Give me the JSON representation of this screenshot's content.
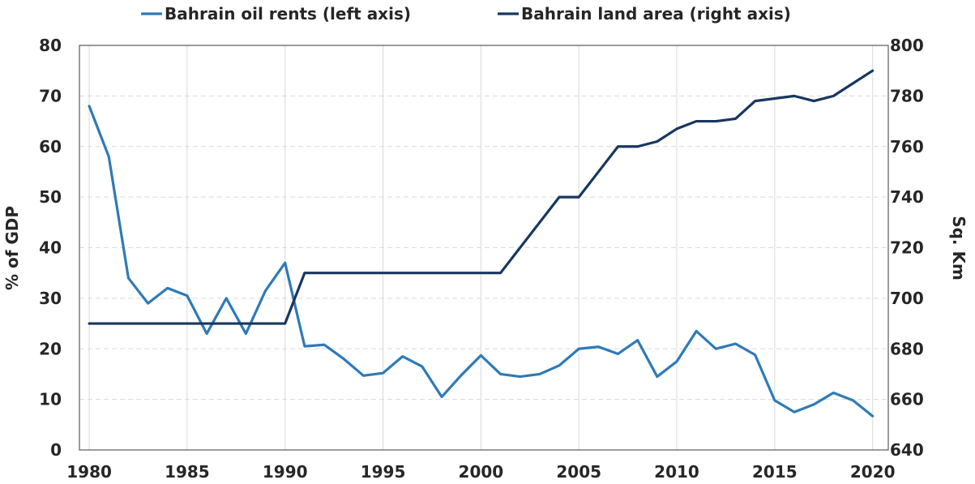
{
  "chart_data": {
    "type": "line",
    "title": "",
    "legend": {
      "placement": "top-center",
      "entries": [
        "Bahrain oil rents (left axis)",
        "Bahrain land area (right axis)"
      ]
    },
    "x": {
      "range": [
        1979.5,
        2020.8
      ],
      "ticks": [
        1980,
        1985,
        1990,
        1995,
        2000,
        2005,
        2010,
        2015,
        2020
      ],
      "tick_labels": [
        "1980",
        "1985",
        "1990",
        "1995",
        "2000",
        "2005",
        "2010",
        "2015",
        "2020"
      ]
    },
    "y_left": {
      "label": "% of GDP",
      "range": [
        0,
        80
      ],
      "ticks": [
        0,
        10,
        20,
        30,
        40,
        50,
        60,
        70,
        80
      ],
      "tick_labels": [
        "0",
        "10",
        "20",
        "30",
        "40",
        "50",
        "60",
        "70",
        "80"
      ]
    },
    "y_right": {
      "label": "Sq. Km",
      "range": [
        640,
        800
      ],
      "ticks": [
        640,
        660,
        680,
        700,
        720,
        740,
        760,
        780,
        800
      ],
      "tick_labels": [
        "640",
        "660",
        "680",
        "700",
        "720",
        "740",
        "760",
        "780",
        "800"
      ]
    },
    "grid": {
      "horizontal": true,
      "vertical": true
    },
    "series": [
      {
        "name": "Bahrain oil rents (left axis)",
        "axis": "left",
        "color": "#2e7ab8",
        "x": [
          1980,
          1981,
          1982,
          1983,
          1984,
          1985,
          1986,
          1987,
          1988,
          1989,
          1990,
          1991,
          1992,
          1993,
          1994,
          1995,
          1996,
          1997,
          1998,
          1999,
          2000,
          2001,
          2002,
          2003,
          2004,
          2005,
          2006,
          2007,
          2008,
          2009,
          2010,
          2011,
          2012,
          2013,
          2014,
          2015,
          2016,
          2017,
          2018,
          2019,
          2020
        ],
        "values": [
          68,
          58,
          34,
          29,
          32,
          30.5,
          23,
          30,
          23,
          31.5,
          37,
          20.5,
          20.8,
          18,
          14.7,
          15.2,
          18.5,
          16.5,
          10.5,
          14.8,
          18.7,
          15,
          14.5,
          15,
          16.7,
          20,
          20.4,
          19,
          21.7,
          14.5,
          17.5,
          23.5,
          20,
          21,
          18.8,
          9.8,
          7.5,
          9,
          11.3,
          9.8,
          6.7
        ]
      },
      {
        "name": "Bahrain land area (right axis)",
        "axis": "right",
        "color": "#17375e",
        "x": [
          1980,
          1981,
          1982,
          1983,
          1984,
          1985,
          1986,
          1987,
          1988,
          1989,
          1990,
          1991,
          1992,
          1993,
          1994,
          1995,
          1996,
          1997,
          1998,
          1999,
          2000,
          2001,
          2002,
          2003,
          2004,
          2005,
          2006,
          2007,
          2008,
          2009,
          2010,
          2011,
          2012,
          2013,
          2014,
          2015,
          2016,
          2017,
          2018,
          2019,
          2020
        ],
        "values": [
          690,
          690,
          690,
          690,
          690,
          690,
          690,
          690,
          690,
          690,
          690,
          710,
          710,
          710,
          710,
          710,
          710,
          710,
          710,
          710,
          710,
          710,
          720,
          730,
          740,
          740,
          750,
          760,
          760,
          762,
          767,
          770,
          770,
          771,
          778,
          779,
          780,
          778,
          780,
          785,
          790
        ]
      }
    ]
  }
}
